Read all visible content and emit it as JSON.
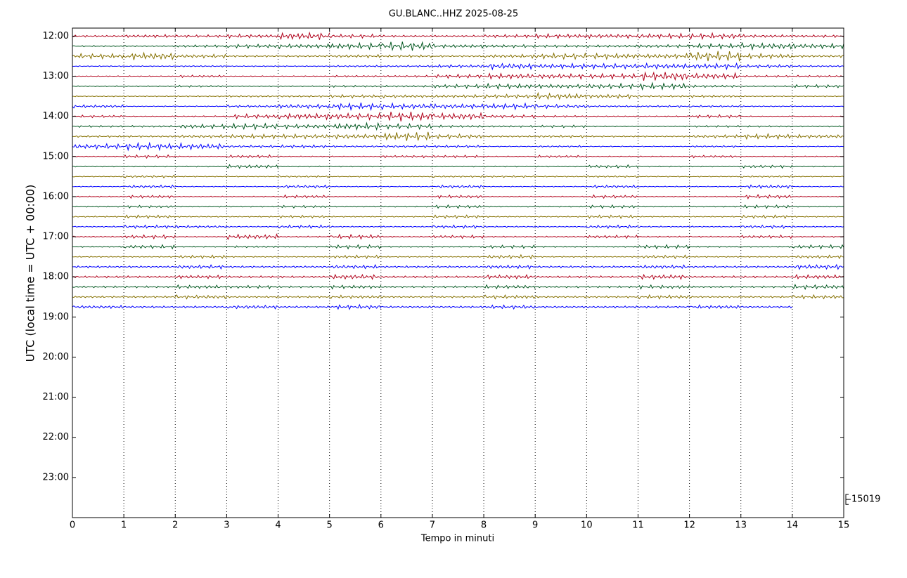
{
  "chart_data": {
    "type": "helicorder",
    "title": "GU.BLANC..HHZ 2025-08-25",
    "xlabel": "Tempo in minuti",
    "ylabel": "UTC (local time = UTC + 00:00)",
    "xlim": [
      0,
      15
    ],
    "xticks": [
      0,
      1,
      2,
      3,
      4,
      5,
      6,
      7,
      8,
      9,
      10,
      11,
      12,
      13,
      14,
      15
    ],
    "ylim": [
      11.8,
      24
    ],
    "yticks": [
      {
        "value": 12,
        "label": "12:00"
      },
      {
        "value": 13,
        "label": "13:00"
      },
      {
        "value": 14,
        "label": "14:00"
      },
      {
        "value": 15,
        "label": "15:00"
      },
      {
        "value": 16,
        "label": "16:00"
      },
      {
        "value": 17,
        "label": "17:00"
      },
      {
        "value": 18,
        "label": "18:00"
      },
      {
        "value": 19,
        "label": "19:00"
      },
      {
        "value": 20,
        "label": "20:00"
      },
      {
        "value": 21,
        "label": "21:00"
      },
      {
        "value": 22,
        "label": "22:00"
      },
      {
        "value": 23,
        "label": "23:00"
      }
    ],
    "grid": true,
    "scale": 15019,
    "trace_step": 0.25,
    "traces": [
      {
        "start": 12,
        "color": "#b0001a",
        "values": [
          1500,
          2500,
          2000,
          3000,
          6000,
          3000,
          1500,
          1500,
          2500,
          3500,
          3500,
          4000,
          4500,
          2500,
          2000
        ]
      },
      {
        "start": 12.25,
        "color": "#00561e",
        "values": [
          1000,
          1000,
          2000,
          3000,
          3500,
          5000,
          7000,
          3000,
          2500,
          2000,
          2000,
          2500,
          4000,
          5000,
          4000
        ]
      },
      {
        "start": 12.5,
        "color": "#857000",
        "values": [
          4000,
          6000,
          3000,
          1500,
          1500,
          2500,
          2000,
          1500,
          3000,
          4500,
          4500,
          4000,
          8000,
          4000,
          2000
        ]
      },
      {
        "start": 12.75,
        "color": "#0000ff",
        "values": [
          800,
          800,
          1200,
          800,
          800,
          1500,
          1500,
          2500,
          5000,
          4000,
          4000,
          4500,
          4500,
          2500,
          1500
        ]
      },
      {
        "start": 13,
        "color": "#b0001a",
        "values": [
          800,
          800,
          2000,
          800,
          800,
          1500,
          1500,
          3000,
          4500,
          4000,
          4000,
          7000,
          5000,
          1500,
          1500
        ]
      },
      {
        "start": 13.25,
        "color": "#00561e",
        "values": [
          800,
          800,
          1500,
          800,
          800,
          1500,
          1500,
          3000,
          4000,
          3500,
          4000,
          5000,
          2000,
          1000,
          2500
        ]
      },
      {
        "start": 13.5,
        "color": "#857000",
        "values": [
          800,
          800,
          1000,
          1500,
          1500,
          2500,
          2500,
          2500,
          3000,
          5000,
          3500,
          1500,
          2000,
          1000,
          800
        ]
      },
      {
        "start": 13.75,
        "color": "#0000ff",
        "values": [
          2500,
          800,
          800,
          2000,
          3500,
          5500,
          4500,
          4000,
          4500,
          3000,
          1500,
          1500,
          1500,
          1000,
          800
        ]
      },
      {
        "start": 14,
        "color": "#b0001a",
        "values": [
          2000,
          800,
          1000,
          3500,
          5000,
          5000,
          7500,
          5500,
          2500,
          1500,
          1000,
          1000,
          2500,
          800,
          800
        ]
      },
      {
        "start": 14.25,
        "color": "#00561e",
        "values": [
          1500,
          1500,
          3500,
          4500,
          3500,
          5500,
          4000,
          2000,
          1500,
          2000,
          800,
          800,
          1500,
          1200,
          1000
        ]
      },
      {
        "start": 14.5,
        "color": "#857000",
        "values": [
          1500,
          1500,
          2500,
          3500,
          3500,
          4000,
          7000,
          3500,
          1500,
          2000,
          1200,
          1200,
          2500,
          4000,
          3000
        ]
      },
      {
        "start": 14.75,
        "color": "#0000ff",
        "values": [
          4000,
          5500,
          5000,
          2000,
          2500,
          1500,
          2000,
          2000,
          800,
          1500,
          800,
          800,
          1500,
          800,
          800
        ]
      },
      {
        "start": 15,
        "color": "#b0001a",
        "values": [
          800,
          2500,
          800,
          2500,
          800,
          800,
          2000,
          2000,
          800,
          2000,
          800,
          800,
          2000,
          800,
          800
        ]
      },
      {
        "start": 15.25,
        "color": "#00561e",
        "values": [
          800,
          800,
          800,
          3000,
          800,
          800,
          800,
          800,
          800,
          800,
          2500,
          800,
          800,
          2500,
          800
        ]
      },
      {
        "start": 15.5,
        "color": "#857000",
        "values": [
          800,
          2000,
          800,
          800,
          1500,
          800,
          800,
          1500,
          1500,
          1000,
          1500,
          800,
          800,
          1500,
          800
        ]
      },
      {
        "start": 15.75,
        "color": "#0000ff",
        "values": [
          800,
          2500,
          800,
          800,
          2500,
          800,
          800,
          2500,
          800,
          800,
          2500,
          800,
          800,
          3000,
          800
        ]
      },
      {
        "start": 16,
        "color": "#b0001a",
        "values": [
          800,
          2500,
          800,
          800,
          2500,
          800,
          800,
          2500,
          800,
          800,
          2500,
          800,
          800,
          3000,
          800
        ]
      },
      {
        "start": 16.25,
        "color": "#00561e",
        "values": [
          800,
          2000,
          800,
          800,
          2000,
          800,
          800,
          2500,
          800,
          800,
          2500,
          800,
          800,
          2500,
          800
        ]
      },
      {
        "start": 16.5,
        "color": "#857000",
        "values": [
          1000,
          2500,
          1000,
          1000,
          2000,
          1000,
          1000,
          2500,
          1000,
          1000,
          2500,
          1000,
          1000,
          2500,
          1000
        ]
      },
      {
        "start": 16.75,
        "color": "#0000ff",
        "values": [
          1000,
          2500,
          2000,
          1000,
          2500,
          1000,
          1000,
          2500,
          1000,
          1000,
          2500,
          1000,
          1000,
          2500,
          1000
        ]
      },
      {
        "start": 17,
        "color": "#b0001a",
        "values": [
          1000,
          3000,
          800,
          4000,
          1000,
          3500,
          1000,
          2500,
          1000,
          1000,
          2500,
          1000,
          1000,
          2500,
          1000
        ]
      },
      {
        "start": 17.25,
        "color": "#00561e",
        "values": [
          1000,
          3000,
          800,
          1500,
          1000,
          3000,
          1000,
          1000,
          2500,
          1000,
          1000,
          3000,
          1000,
          1000,
          3000
        ]
      },
      {
        "start": 17.5,
        "color": "#857000",
        "values": [
          1000,
          1000,
          2500,
          1000,
          1000,
          2500,
          1000,
          1000,
          3000,
          1000,
          1000,
          2500,
          1000,
          1000,
          2500
        ]
      },
      {
        "start": 17.75,
        "color": "#0000ff",
        "values": [
          1500,
          1500,
          3000,
          1500,
          1500,
          3000,
          1500,
          1500,
          3000,
          1500,
          1500,
          3000,
          1500,
          1500,
          4000
        ]
      },
      {
        "start": 18,
        "color": "#b0001a",
        "values": [
          1500,
          1500,
          3000,
          1500,
          1500,
          4000,
          1500,
          1500,
          3500,
          1500,
          1500,
          4000,
          1500,
          1500,
          3500
        ]
      },
      {
        "start": 18.25,
        "color": "#00561e",
        "values": [
          1500,
          1500,
          3000,
          2500,
          1500,
          3000,
          1500,
          1500,
          3000,
          1500,
          1500,
          3000,
          1500,
          1500,
          3500
        ]
      },
      {
        "start": 18.5,
        "color": "#857000",
        "values": [
          1500,
          1500,
          3000,
          1500,
          1500,
          2500,
          1500,
          1500,
          3000,
          1500,
          1500,
          3000,
          1500,
          1500,
          3000
        ]
      },
      {
        "start": 18.75,
        "color": "#0000ff",
        "values": [
          2500,
          1500,
          1500,
          3000,
          1500,
          3500,
          1500,
          1500,
          3000,
          1500,
          1500,
          1500,
          3000,
          1500,
          null
        ]
      }
    ]
  }
}
